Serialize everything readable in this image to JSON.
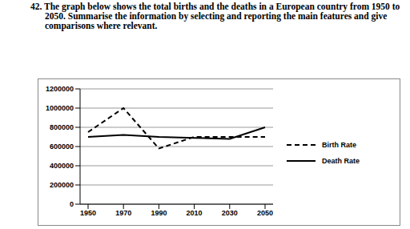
{
  "chart_data": {
    "type": "line",
    "title": "42. The graph below shows the total births and the deaths in a European country from 1950 to 2050. Summarise the information by selecting and reporting the main features and give comparisons where relevant.",
    "categories": [
      "1950",
      "1970",
      "1990",
      "2010",
      "2030",
      "2050"
    ],
    "series": [
      {
        "name": "Birth Rate",
        "color": "#000000",
        "line_style": "dashed",
        "values": [
          750000,
          1000000,
          580000,
          700000,
          700000,
          700000
        ]
      },
      {
        "name": "Death Rate",
        "color": "#000000",
        "line_style": "solid",
        "values": [
          700000,
          720000,
          700000,
          690000,
          680000,
          800000
        ]
      }
    ],
    "ylim": [
      0,
      1200000
    ],
    "yticks": [
      0,
      200000,
      400000,
      600000,
      800000,
      1000000,
      1200000
    ],
    "grid": true,
    "legend": "right"
  }
}
